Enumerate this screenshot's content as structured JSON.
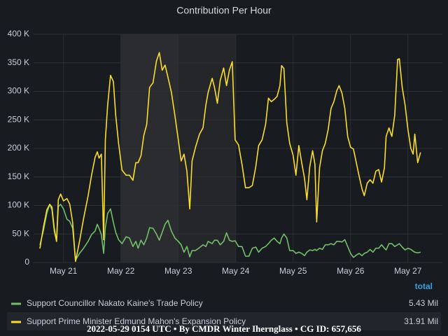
{
  "chart_data": {
    "type": "line",
    "title": "Contribution Per Hour",
    "x": [
      20.59,
      20.65,
      20.71,
      20.76,
      20.8,
      20.84,
      20.88,
      20.91,
      20.95,
      21.0,
      21.06,
      21.11,
      21.16,
      21.21,
      21.28,
      21.35,
      21.43,
      21.49,
      21.55,
      21.59,
      21.62,
      21.66,
      21.7,
      21.73,
      21.77,
      21.82,
      21.87,
      21.91,
      21.96,
      22.02,
      22.09,
      22.15,
      22.21,
      22.26,
      22.3,
      22.35,
      22.4,
      22.45,
      22.5,
      22.56,
      22.62,
      22.67,
      22.72,
      22.77,
      22.82,
      22.88,
      22.94,
      23.0,
      23.05,
      23.1,
      23.15,
      23.2,
      23.24,
      23.3,
      23.37,
      23.43,
      23.48,
      23.52,
      23.59,
      23.63,
      23.68,
      23.73,
      23.79,
      23.84,
      23.89,
      23.94,
      23.99,
      24.05,
      24.11,
      24.17,
      24.23,
      24.29,
      24.35,
      24.4,
      24.46,
      24.52,
      24.57,
      24.62,
      24.67,
      24.72,
      24.77,
      24.8,
      24.84,
      24.89,
      24.94,
      25.0,
      25.05,
      25.1,
      25.15,
      25.2,
      25.24,
      25.29,
      25.34,
      25.38,
      25.41,
      25.46,
      25.51,
      25.56,
      25.61,
      25.66,
      25.71,
      25.76,
      25.8,
      25.85,
      25.9,
      25.95,
      26.0,
      26.05,
      26.1,
      26.15,
      26.2,
      26.24,
      26.29,
      26.34,
      26.39,
      26.44,
      26.49,
      26.54,
      26.59,
      26.62,
      26.67,
      26.72,
      26.77,
      26.82,
      26.85,
      26.9,
      26.95,
      27.0,
      27.05,
      27.09,
      27.12,
      27.17,
      27.22
    ],
    "series": [
      {
        "name": "Support Councillor Nakato Kaine's Trade Policy",
        "color": "#73bf69",
        "total": "5.43 Mil",
        "values": [
          30.7,
          55,
          86,
          102,
          92,
          55,
          37,
          98,
          102,
          94,
          76,
          72,
          60,
          4,
          16,
          25,
          37,
          49,
          55,
          67,
          60,
          49,
          16,
          61,
          86,
          94,
          70,
          53,
          40,
          33,
          45,
          43,
          28,
          37,
          25,
          39,
          31,
          43,
          61,
          60,
          50,
          39,
          53,
          67,
          74,
          55,
          43,
          37,
          31,
          18,
          28,
          10,
          21,
          21,
          26,
          31,
          28,
          37,
          33,
          39,
          39,
          31,
          37,
          52,
          39,
          37,
          38,
          28,
          28,
          11,
          11,
          25,
          27,
          18,
          25,
          28,
          33,
          39,
          43,
          37,
          33,
          43,
          50,
          43,
          21,
          21,
          16,
          18,
          16,
          12,
          18,
          22,
          21,
          23,
          21,
          25,
          23,
          31,
          31,
          33,
          31,
          37,
          37,
          36,
          40,
          28,
          16,
          9,
          13,
          16,
          12,
          16,
          18,
          23,
          18,
          25,
          25,
          31,
          25,
          22,
          33,
          33,
          28,
          31,
          33,
          27,
          22,
          25,
          23,
          20,
          18,
          17,
          18
        ]
      },
      {
        "name": "Support Prime Minister Edmund Mahon's Expansion Policy",
        "color": "#fade2a",
        "total": "31.91 Mil",
        "values": [
          24.5,
          61,
          92,
          102,
          97,
          60,
          37,
          110,
          120,
          108,
          112,
          102,
          70,
          2,
          37,
          77,
          117,
          153,
          184,
          194,
          183,
          190,
          40,
          215,
          276,
          328,
          317,
          258,
          209,
          162,
          153,
          153,
          144,
          175,
          175,
          187,
          223,
          242,
          307,
          315,
          353,
          368,
          337,
          346,
          325,
          298,
          258,
          215,
          178,
          190,
          160,
          94,
          178,
          202,
          225,
          236,
          276,
          298,
          323,
          307,
          279,
          319,
          341,
          310,
          337,
          352,
          215,
          206,
          172,
          131,
          131,
          135,
          168,
          205,
          215,
          242,
          288,
          282,
          286,
          291,
          310,
          345,
          340,
          245,
          209,
          188,
          153,
          205,
          175,
          147,
          110,
          168,
          196,
          172,
          71,
          166,
          196,
          209,
          233,
          270,
          282,
          301,
          310,
          297,
          270,
          221,
          202,
          199,
          175,
          151,
          129,
          117,
          139,
          145,
          139,
          160,
          163,
          141,
          166,
          221,
          236,
          221,
          258,
          356,
          357,
          307,
          276,
          233,
          200,
          190,
          225,
          175,
          193
        ]
      }
    ],
    "xlim": [
      20.48,
      27.6
    ],
    "xticks": [
      {
        "value": 21,
        "label": "May 21"
      },
      {
        "value": 22,
        "label": "May 22"
      },
      {
        "value": 23,
        "label": "May 23"
      },
      {
        "value": 24,
        "label": "May 24"
      },
      {
        "value": 25,
        "label": "May 25"
      },
      {
        "value": 26,
        "label": "May 26"
      },
      {
        "value": 27,
        "label": "May 27"
      }
    ],
    "ylim": [
      0,
      400
    ],
    "yticks": [
      0,
      {
        "value": 50,
        "label": "50 K"
      },
      {
        "value": 100,
        "label": "100 K"
      },
      {
        "value": 150,
        "label": "150 K"
      },
      {
        "value": 200,
        "label": "200 K"
      },
      {
        "value": 250,
        "label": "250 K"
      },
      {
        "value": 300,
        "label": "300 K"
      },
      {
        "value": 350,
        "label": "350 K"
      },
      {
        "value": 400,
        "label": "400 K"
      }
    ],
    "grid": true,
    "legend_header": "total",
    "footer": "2022-05-29 0154 UTC • By CMDR Winter Ihernglass • CG ID: 657,656"
  }
}
